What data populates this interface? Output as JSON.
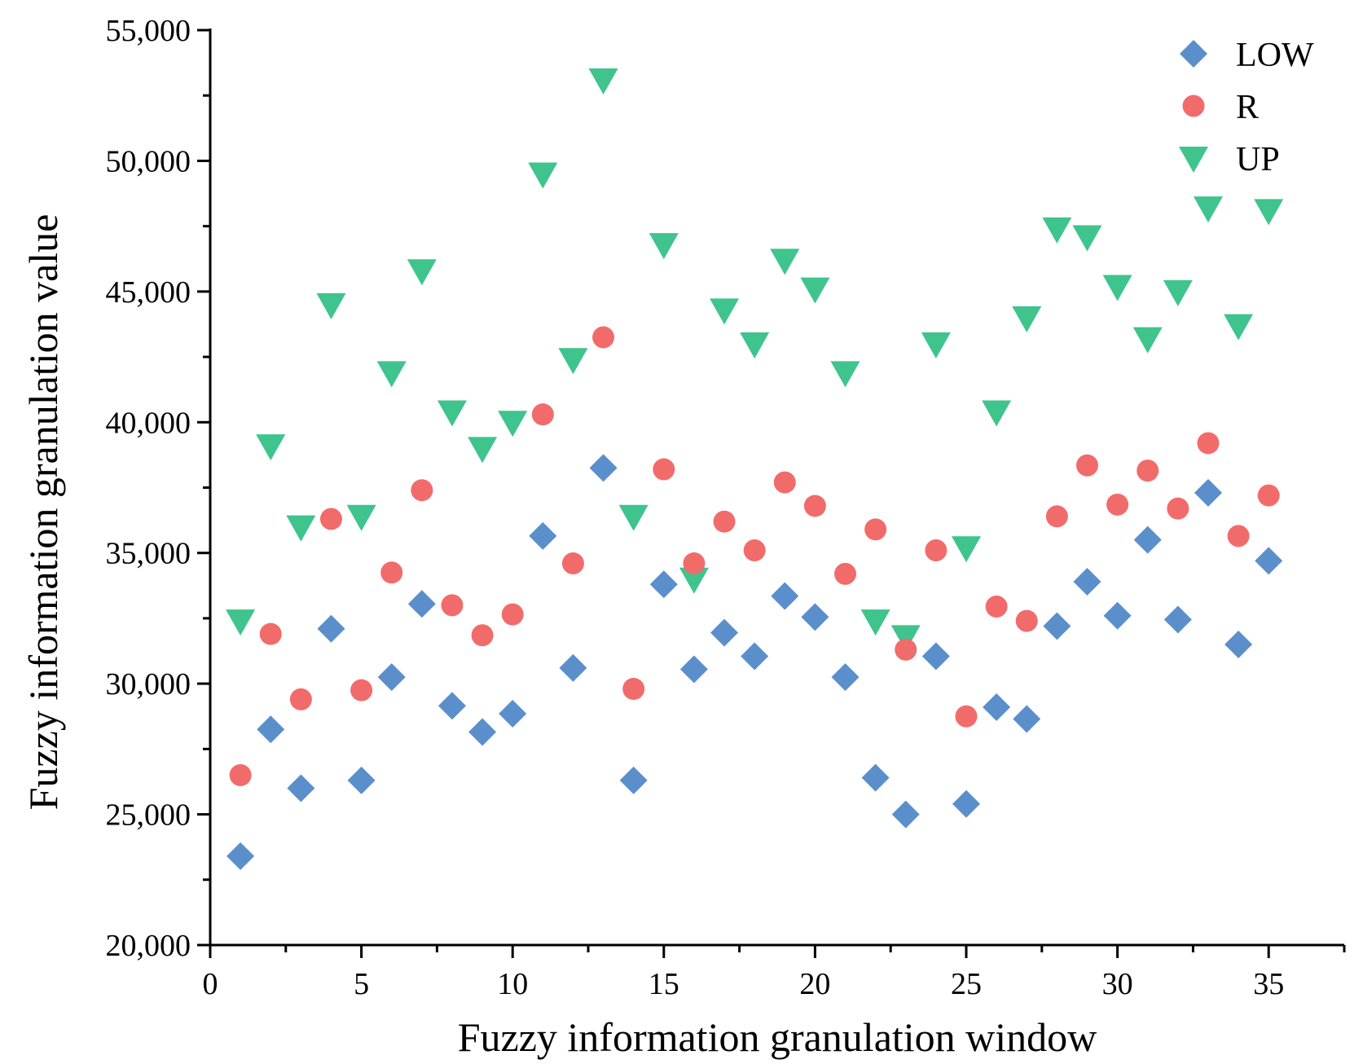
{
  "chart_data": {
    "type": "scatter",
    "title": "",
    "xlabel": "Fuzzy information granulation window",
    "ylabel": "Fuzzy information granulation value",
    "xlim": [
      0,
      37.5
    ],
    "ylim": [
      20000,
      55000
    ],
    "x_ticks": [
      0,
      5,
      10,
      15,
      20,
      25,
      30,
      35
    ],
    "x_tick_labels": [
      "0",
      "5",
      "10",
      "15",
      "20",
      "25",
      "30",
      "35"
    ],
    "y_ticks": [
      20000,
      25000,
      30000,
      35000,
      40000,
      45000,
      50000,
      55000
    ],
    "y_tick_labels": [
      "20,000",
      "25,000",
      "30,000",
      "35,000",
      "40,000",
      "45,000",
      "50,000",
      "55,000"
    ],
    "legend_position": "top-right",
    "x": [
      1,
      2,
      3,
      4,
      5,
      6,
      7,
      8,
      9,
      10,
      11,
      12,
      13,
      14,
      15,
      16,
      17,
      18,
      19,
      20,
      21,
      22,
      23,
      24,
      25,
      26,
      27,
      28,
      29,
      30,
      31,
      32,
      33,
      34,
      35
    ],
    "series": [
      {
        "name": "LOW",
        "marker": "diamond",
        "color": "#5b8fcc",
        "values": [
          23400,
          28250,
          26000,
          32100,
          26300,
          30250,
          33050,
          29150,
          28150,
          28850,
          35650,
          30600,
          38250,
          26300,
          33800,
          30550,
          31950,
          31050,
          33350,
          32550,
          30250,
          26400,
          25000,
          31050,
          25400,
          29100,
          28650,
          32200,
          33900,
          32600,
          35500,
          32450,
          37300,
          31500,
          34700
        ]
      },
      {
        "name": "R",
        "marker": "circle",
        "color": "#f26b6b",
        "values": [
          26500,
          31900,
          29400,
          36300,
          29750,
          34250,
          37400,
          33000,
          31850,
          32650,
          40300,
          34600,
          43250,
          29800,
          38200,
          34600,
          36200,
          35100,
          37700,
          36800,
          34200,
          35900,
          31300,
          35100,
          28750,
          32950,
          32400,
          36400,
          38350,
          36850,
          38150,
          36700,
          39200,
          35650,
          37200
        ]
      },
      {
        "name": "UP",
        "marker": "triangle-down",
        "color": "#3ec48c",
        "values": [
          32400,
          39100,
          36000,
          44500,
          36400,
          41900,
          45800,
          40400,
          39000,
          40000,
          49500,
          42400,
          53100,
          36400,
          46800,
          34000,
          44300,
          43000,
          46200,
          45100,
          41900,
          32400,
          31800,
          43000,
          35200,
          40400,
          44000,
          47400,
          47100,
          45200,
          43200,
          45000,
          48200,
          43700,
          48100
        ]
      }
    ]
  }
}
